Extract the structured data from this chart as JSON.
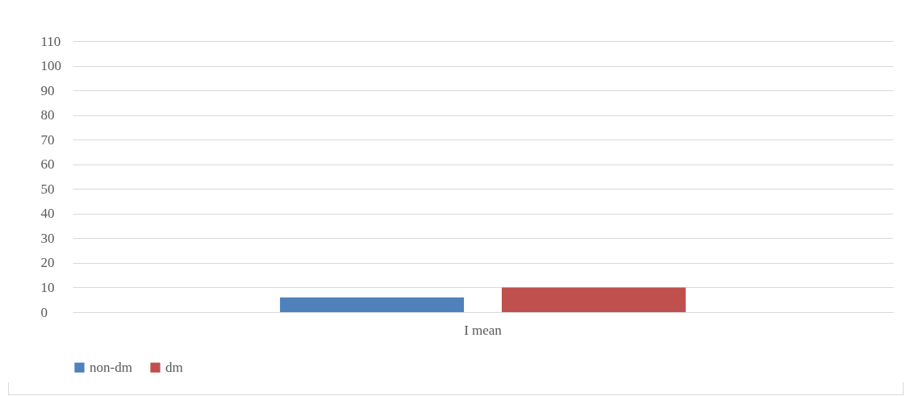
{
  "chart_data": {
    "type": "bar",
    "categories": [
      "I mean"
    ],
    "series": [
      {
        "name": "non-dm",
        "color": "#4f81bd",
        "values": [
          6
        ]
      },
      {
        "name": "dm",
        "color": "#c0504d",
        "values": [
          10
        ]
      }
    ],
    "ylim": [
      0,
      110
    ],
    "yticks": [
      0,
      10,
      20,
      30,
      40,
      50,
      60,
      70,
      80,
      90,
      100,
      110
    ],
    "grid": "y",
    "legend": "bottom"
  }
}
